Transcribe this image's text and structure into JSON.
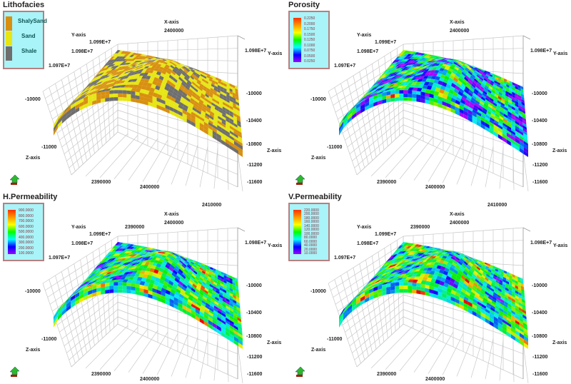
{
  "panels": [
    {
      "title": "Lithofacies",
      "legend_type": "categorical",
      "legend": [
        {
          "label": "ShalySand",
          "color": "#d88f10"
        },
        {
          "label": "Sand",
          "color": "#e6e614"
        },
        {
          "label": "Shale",
          "color": "#6e6e6e"
        }
      ],
      "axes": {
        "x_label": "X-axis",
        "x_ticks": [
          "2400000"
        ],
        "x_bottom_ticks": [
          "2390000",
          "2400000"
        ],
        "y_label": "Y-axis",
        "y_left_ticks": [
          "1.099E+7",
          "1.098E+7",
          "1.097E+7"
        ],
        "y_right_tick": "1.098E+7",
        "z_label": "Z-axis",
        "z_left_ticks": [
          "-10000",
          "-11000"
        ],
        "z_right_ticks": [
          "-10000",
          "-10400",
          "-10800",
          "-11200",
          "-11600"
        ]
      }
    },
    {
      "title": "Porosity",
      "legend_type": "continuous",
      "legend": [
        "0.2250",
        "0.2000",
        "0.1750",
        "0.1500",
        "0.1250",
        "0.1000",
        "0.0750",
        "0.0500",
        "0.0250"
      ],
      "axes": {
        "x_label": "X-axis",
        "x_ticks": [
          "2400000"
        ],
        "x_bottom_ticks": [
          "2390000",
          "2400000"
        ],
        "y_label": "Y-axis",
        "y_left_ticks": [
          "1.099E+7",
          "1.098E+7",
          "1.097E+7"
        ],
        "y_right_tick": "1.098E+7",
        "z_label": "Z-axis",
        "z_left_ticks": [
          "-10000",
          "-11000"
        ],
        "z_right_ticks": [
          "-10000",
          "-10400",
          "-10800",
          "-11200",
          "-11600"
        ]
      }
    },
    {
      "title": "H.Permeability",
      "legend_type": "continuous",
      "legend": [
        "900.0000",
        "800.0000",
        "700.0000",
        "600.0000",
        "500.0000",
        "400.0000",
        "300.0000",
        "200.0000",
        "100.0000"
      ],
      "axes": {
        "x_label": "X-axis",
        "x_ticks": [
          "2390000",
          "2400000",
          "2410000"
        ],
        "x_bottom_ticks": [
          "2390000",
          "2400000"
        ],
        "y_label": "Y-axis",
        "y_left_ticks": [
          "1.099E+7",
          "1.098E+7",
          "1.097E+7"
        ],
        "y_right_tick": "1.098E+7",
        "z_label": "Z-axis",
        "z_left_ticks": [
          "-10000",
          "-11000"
        ],
        "z_right_ticks": [
          "-10000",
          "-10400",
          "-10800",
          "-11200",
          "-11600"
        ]
      }
    },
    {
      "title": "V.Permeability",
      "legend_type": "continuous",
      "legend": [
        "220.0000",
        "200.0000",
        "180.0000",
        "160.0000",
        "140.0000",
        "120.0000",
        "100.0000",
        "80.0000",
        "60.0000",
        "40.0000",
        "20.0000",
        "10.0000"
      ],
      "axes": {
        "x_label": "X-axis",
        "x_ticks": [
          "2390000",
          "2400000",
          "2410000"
        ],
        "x_bottom_ticks": [
          "2390000",
          "2400000"
        ],
        "y_label": "Y-axis",
        "y_left_ticks": [
          "1.099E+7",
          "1.098E+7",
          "1.097E+7"
        ],
        "y_right_tick": "1.098E+7",
        "z_label": "Z-axis",
        "z_left_ticks": [
          "-10000",
          "-11000"
        ],
        "z_right_ticks": [
          "-10000",
          "-10400",
          "-10800",
          "-11200",
          "-11600"
        ]
      }
    }
  ],
  "chart_data": {
    "type": "3d-surface",
    "titles": [
      "Lithofacies",
      "Porosity",
      "H.Permeability",
      "V.Permeability"
    ],
    "grid": true
  }
}
